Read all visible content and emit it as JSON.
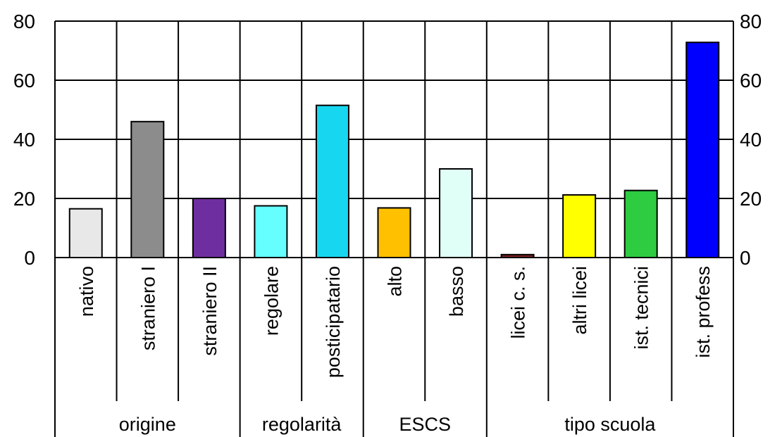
{
  "chart_data": {
    "type": "bar",
    "categories": [
      "nativo",
      "straniero I",
      "straniero II",
      "regolare",
      "posticipatario",
      "alto",
      "basso",
      "licei c. s.",
      "altri licei",
      "ist. tecnici",
      "ist. profess"
    ],
    "values": [
      16.5,
      46,
      20,
      17.5,
      51.5,
      16.8,
      30,
      1,
      21.2,
      22.7,
      72.8
    ],
    "colors": [
      "#e8e8e8",
      "#8c8c8c",
      "#6f2ea0",
      "#66ffff",
      "#17d7f0",
      "#ffc000",
      "#e0fff7",
      "#7a1f1f",
      "#ffff00",
      "#2ecc40",
      "#0000ff"
    ],
    "groups": [
      {
        "label": "origine",
        "count": 3
      },
      {
        "label": "regolarità",
        "count": 2
      },
      {
        "label": "ESCS",
        "count": 2
      },
      {
        "label": "tipo scuola",
        "count": 4
      }
    ],
    "y_ticks": [
      "0",
      "20",
      "40",
      "60",
      "80"
    ],
    "ylim": [
      0,
      80
    ],
    "grid": true,
    "title": "",
    "xlabel": "",
    "ylabel": ""
  }
}
